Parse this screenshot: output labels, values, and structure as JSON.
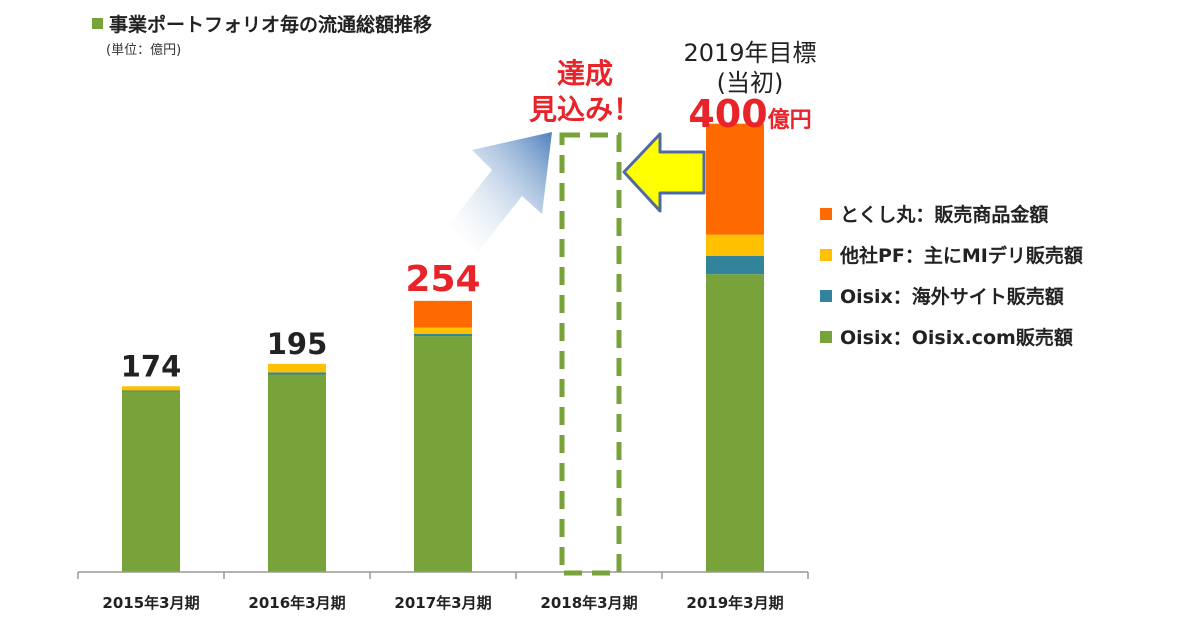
{
  "chart_data": {
    "type": "bar",
    "stacked": true,
    "title": "事業ポートフォリオ毎の流通総額推移",
    "subtitle": "(単位：億円)",
    "categories": [
      "2015年3月期",
      "2016年3月期",
      "2017年3月期",
      "2018年3月期",
      "2019年3月期"
    ],
    "series": [
      {
        "name": "Oisix：Oisix.com販売額",
        "color": "#77a33a",
        "values": [
          169,
          185,
          221,
          0,
          279
        ]
      },
      {
        "name": "Oisix：海外サイト販売額",
        "color": "#31849b",
        "values": [
          1,
          2,
          2,
          0,
          17
        ]
      },
      {
        "name": "他社PF：主にMIデリ販売額",
        "color": "#ffc000",
        "values": [
          4,
          8,
          6,
          0,
          20
        ]
      },
      {
        "name": "とくし丸：販売商品金額",
        "color": "#ff6a00",
        "values": [
          0,
          0,
          25,
          0,
          104
        ]
      }
    ],
    "totals": [
      "174",
      "195",
      "254",
      "",
      ""
    ],
    "total_label_colors": [
      "#222222",
      "#222222",
      "#e8242a",
      "#222222",
      "#222222"
    ],
    "ylim": [
      0,
      430
    ],
    "legend_position": "right",
    "grid": false
  },
  "annotations": {
    "goal_line1": "2019年目標",
    "goal_line2": "(当初)",
    "goal_value": "400",
    "goal_unit": "億円",
    "achieve_line1": "達成",
    "achieve_line2": "見込み！"
  },
  "colors": {
    "title_swatch": "#77a33a",
    "highlight_red": "#e8242a",
    "arrow_yellow": "#ffff00",
    "arrow_blue": "#4f81bd",
    "dashed_box": "#77a33a"
  }
}
